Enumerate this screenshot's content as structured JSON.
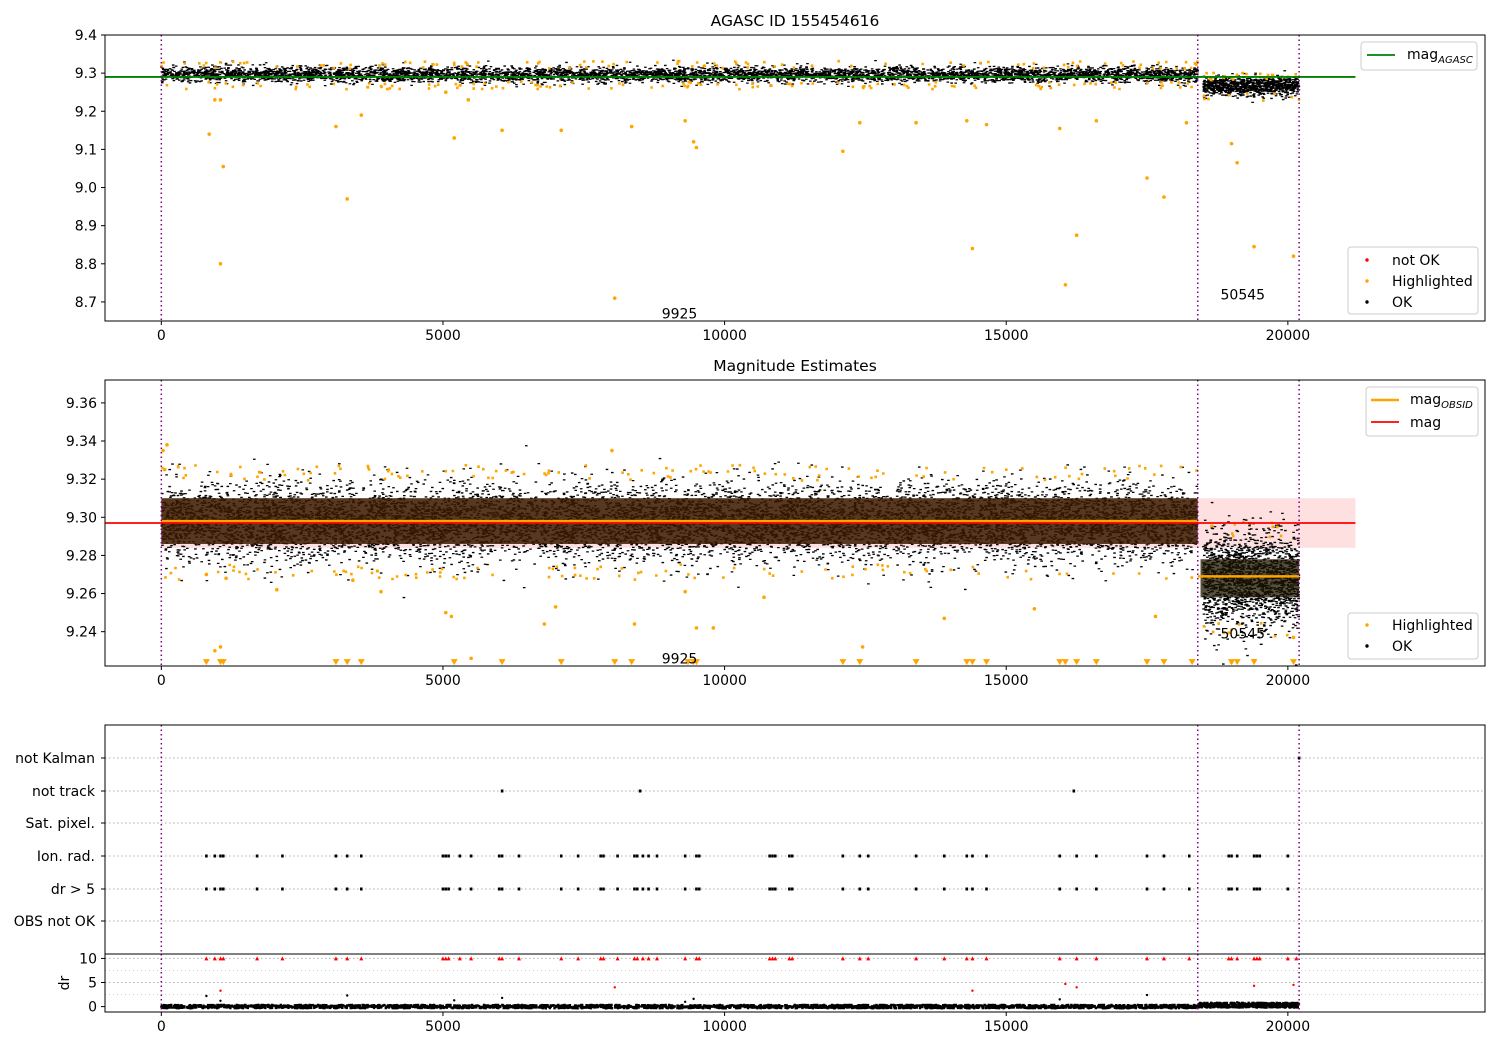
{
  "chart_data": [
    {
      "type": "scatter",
      "title": "AGASC ID 155454616",
      "xlim": [
        -1000,
        23500
      ],
      "ylim": [
        8.65,
        9.4
      ],
      "x_ticks": [
        0,
        5000,
        10000,
        15000,
        20000
      ],
      "y_ticks": [
        8.7,
        8.8,
        8.9,
        9.0,
        9.1,
        9.2,
        9.3,
        9.4
      ],
      "obs_boundaries": [
        0,
        18400,
        20200
      ],
      "obs_labels": [
        {
          "text": "9925",
          "x": 9200,
          "y": 8.67
        },
        {
          "text": "50545",
          "x": 19200,
          "y": 8.72
        }
      ],
      "lines": [
        {
          "name": "mag_AGASC",
          "label_main": "mag",
          "label_sub": "AGASC",
          "color": "#008000",
          "y": 9.29,
          "x_range": [
            -1000,
            21200
          ]
        }
      ],
      "legends": [
        {
          "position": "top-right",
          "items": [
            {
              "label_main": "mag",
              "label_sub": "AGASC",
              "kind": "line",
              "color": "#008000"
            }
          ]
        },
        {
          "position": "bottom-right",
          "items": [
            {
              "label": "not OK",
              "kind": "dot",
              "color": "#ff0000"
            },
            {
              "label": "Highlighted",
              "kind": "dot",
              "color": "#ffa500"
            },
            {
              "label": "OK",
              "kind": "dot",
              "color": "#000000"
            }
          ]
        }
      ],
      "series": [
        {
          "name": "OK",
          "color": "#000000",
          "bands": [
            {
              "x_range": [
                0,
                18400
              ],
              "y_mean": 9.298,
              "y_half_width": 0.02
            },
            {
              "x_range": [
                18500,
                20200
              ],
              "y_mean": 9.268,
              "y_half_width": 0.025
            }
          ]
        },
        {
          "name": "Highlighted",
          "color": "#ffa500",
          "points": [
            [
              850,
              9.14
            ],
            [
              950,
              9.23
            ],
            [
              1050,
              9.23
            ],
            [
              1100,
              9.055
            ],
            [
              1050,
              8.8
            ],
            [
              3100,
              9.16
            ],
            [
              3300,
              8.97
            ],
            [
              3550,
              9.19
            ],
            [
              5050,
              9.25
            ],
            [
              5200,
              9.13
            ],
            [
              5450,
              9.23
            ],
            [
              6050,
              9.15
            ],
            [
              7100,
              9.15
            ],
            [
              8050,
              8.71
            ],
            [
              8350,
              9.16
            ],
            [
              9300,
              9.175
            ],
            [
              9450,
              9.12
            ],
            [
              9500,
              9.105
            ],
            [
              12100,
              9.095
            ],
            [
              12400,
              9.17
            ],
            [
              13400,
              9.17
            ],
            [
              14300,
              9.175
            ],
            [
              14400,
              8.84
            ],
            [
              14650,
              9.165
            ],
            [
              15950,
              9.155
            ],
            [
              16050,
              8.745
            ],
            [
              16250,
              8.875
            ],
            [
              16600,
              9.175
            ],
            [
              17500,
              9.025
            ],
            [
              17800,
              8.975
            ],
            [
              18200,
              9.17
            ],
            [
              19000,
              9.115
            ],
            [
              19100,
              9.065
            ],
            [
              19400,
              8.845
            ],
            [
              20100,
              8.82
            ]
          ]
        }
      ]
    },
    {
      "type": "scatter",
      "title": "Magnitude Estimates",
      "xlim": [
        -1000,
        23500
      ],
      "ylim": [
        9.222,
        9.372
      ],
      "x_ticks": [
        0,
        5000,
        10000,
        15000,
        20000
      ],
      "y_ticks": [
        9.24,
        9.26,
        9.28,
        9.3,
        9.32,
        9.34,
        9.36
      ],
      "obs_boundaries": [
        0,
        18400,
        20200
      ],
      "obs_labels": [
        {
          "text": "9925",
          "x": 9200,
          "y": 9.226
        },
        {
          "text": "50545",
          "x": 19200,
          "y": 9.239
        }
      ],
      "shaded_band": {
        "y_range": [
          9.284,
          9.31
        ],
        "x_range": [
          0,
          21200
        ],
        "color": "#ffcccc"
      },
      "lines": [
        {
          "name": "mag_OBSID",
          "color": "#ffa500",
          "segments": [
            {
              "x_range": [
                0,
                18400
              ],
              "y": 9.298
            },
            {
              "x_range": [
                18400,
                20200
              ],
              "y": 9.269
            }
          ]
        },
        {
          "name": "mag",
          "color": "#ff0000",
          "y": 9.297,
          "x_range": [
            -1000,
            21200
          ]
        }
      ],
      "legends": [
        {
          "position": "top-right",
          "items": [
            {
              "label_main": "mag",
              "label_sub": "OBSID",
              "kind": "line",
              "color": "#ffa500"
            },
            {
              "label": "mag",
              "kind": "line",
              "color": "#ff0000"
            }
          ]
        },
        {
          "position": "bottom-right",
          "items": [
            {
              "label": "Highlighted",
              "kind": "dot",
              "color": "#ffa500"
            },
            {
              "label": "OK",
              "kind": "dot",
              "color": "#000000"
            }
          ]
        }
      ],
      "series": [
        {
          "name": "OK",
          "color": "#000000",
          "bands": [
            {
              "x_range": [
                0,
                18400
              ],
              "y_mean": 9.298,
              "y_half_width": 0.02
            },
            {
              "x_range": [
                18500,
                20200
              ],
              "y_mean": 9.268,
              "y_half_width": 0.025
            }
          ]
        },
        {
          "name": "Highlighted",
          "color": "#ffa500",
          "points": [
            [
              30,
              9.335
            ],
            [
              100,
              9.338
            ],
            [
              60,
              9.325
            ],
            [
              800,
              9.27
            ],
            [
              950,
              9.23
            ],
            [
              1050,
              9.232
            ],
            [
              1150,
              9.268
            ],
            [
              2050,
              9.262
            ],
            [
              3400,
              9.267
            ],
            [
              3900,
              9.261
            ],
            [
              5050,
              9.25
            ],
            [
              5150,
              9.248
            ],
            [
              5500,
              9.226
            ],
            [
              6800,
              9.244
            ],
            [
              7000,
              9.253
            ],
            [
              8000,
              9.335
            ],
            [
              8400,
              9.244
            ],
            [
              9300,
              9.261
            ],
            [
              9500,
              9.242
            ],
            [
              9800,
              9.242
            ],
            [
              10700,
              9.258
            ],
            [
              12450,
              9.232
            ],
            [
              13900,
              9.247
            ],
            [
              15500,
              9.252
            ],
            [
              17650,
              9.248
            ],
            [
              19000,
              9.224
            ],
            [
              20100,
              9.237
            ]
          ]
        },
        {
          "name": "Off-scale",
          "marker": "triangle-down",
          "color": "#ffa500",
          "y": 9.224,
          "x": [
            800,
            1050,
            1100,
            3100,
            3300,
            3550,
            5200,
            6050,
            7100,
            8050,
            8350,
            9350,
            9450,
            9500,
            12100,
            12400,
            13400,
            14300,
            14400,
            14650,
            15950,
            16050,
            16250,
            16600,
            17500,
            17800,
            18300,
            19000,
            19100,
            19400,
            20100
          ]
        }
      ]
    },
    {
      "type": "scatter",
      "title": "",
      "xlim": [
        -1000,
        23500
      ],
      "x_ticks": [
        0,
        5000,
        10000,
        15000,
        20000
      ],
      "obs_boundaries": [
        0,
        18400,
        20200
      ],
      "flag_rows": [
        "not Kalman",
        "not track",
        "Sat. pixel.",
        "Ion. rad.",
        "dr > 5",
        "OBS not OK"
      ],
      "flags": {
        "not Kalman": [
          20200
        ],
        "not track": [
          6050,
          8500,
          16200
        ],
        "Sat. pixel.": [],
        "Ion. rad.": [
          800,
          950,
          1050,
          1100,
          1700,
          2150,
          3100,
          3300,
          3550,
          5000,
          5050,
          5100,
          5300,
          5500,
          6000,
          6050,
          6350,
          7100,
          7400,
          7800,
          7850,
          8100,
          8400,
          8450,
          8550,
          8650,
          8800,
          9300,
          9500,
          9550,
          10800,
          10850,
          10900,
          11150,
          11200,
          12100,
          12400,
          12550,
          13400,
          13900,
          14300,
          14400,
          14650,
          15950,
          16250,
          16600,
          17500,
          17800,
          18250,
          18950,
          19000,
          19100,
          19400,
          19450,
          19500,
          20000
        ],
        "dr > 5": [
          800,
          950,
          1050,
          1100,
          1700,
          2150,
          3100,
          3300,
          3550,
          5000,
          5050,
          5100,
          5300,
          5500,
          6000,
          6050,
          6350,
          7100,
          7400,
          7800,
          7850,
          8100,
          8400,
          8450,
          8550,
          8650,
          8800,
          9300,
          9500,
          9550,
          10800,
          10850,
          10900,
          11150,
          11200,
          12100,
          12400,
          12550,
          13400,
          13900,
          14300,
          14400,
          14650,
          15950,
          16250,
          16600,
          17500,
          17800,
          18250,
          18950,
          19000,
          19100,
          19400,
          19450,
          19500,
          20000
        ],
        "OBS not OK": []
      },
      "dr_panel": {
        "ylabel": "dr",
        "ylim": [
          -0.5,
          10.5
        ],
        "y_ticks": [
          0,
          5,
          10
        ],
        "clipped_color": "#ff0000",
        "clipped_y": 10,
        "clipped_x": [
          800,
          950,
          1050,
          1100,
          1700,
          2150,
          3100,
          3300,
          3550,
          5000,
          5050,
          5100,
          5300,
          5500,
          6000,
          6050,
          6350,
          7100,
          7400,
          7800,
          7850,
          8100,
          8400,
          8450,
          8550,
          8650,
          8800,
          9300,
          9500,
          9550,
          10800,
          10850,
          10900,
          11150,
          11200,
          12100,
          12400,
          12550,
          13400,
          13900,
          14300,
          14400,
          14650,
          15950,
          16250,
          16600,
          17500,
          17800,
          18250,
          18950,
          19000,
          19100,
          19400,
          19450,
          19500,
          20000,
          20150
        ],
        "outliers_red": [
          [
            1050,
            3.3
          ],
          [
            8050,
            4.0
          ],
          [
            14400,
            3.3
          ],
          [
            16050,
            4.7
          ],
          [
            16250,
            4.0
          ],
          [
            19400,
            4.3
          ],
          [
            20100,
            4.5
          ]
        ],
        "outliers_black": [
          [
            800,
            2.2
          ],
          [
            1050,
            1.2
          ],
          [
            3300,
            2.3
          ],
          [
            5200,
            1.3
          ],
          [
            6050,
            1.8
          ],
          [
            9300,
            1.0
          ],
          [
            9450,
            1.6
          ],
          [
            15950,
            1.5
          ],
          [
            17500,
            2.4
          ],
          [
            19100,
            0.9
          ]
        ],
        "ok_bands": [
          {
            "x_range": [
              0,
              18400
            ],
            "y_mean": 0.25,
            "y_half_width": 0.35
          },
          {
            "x_range": [
              18400,
              20200
            ],
            "y_mean": 0.55,
            "y_half_width": 0.5
          }
        ]
      }
    }
  ]
}
